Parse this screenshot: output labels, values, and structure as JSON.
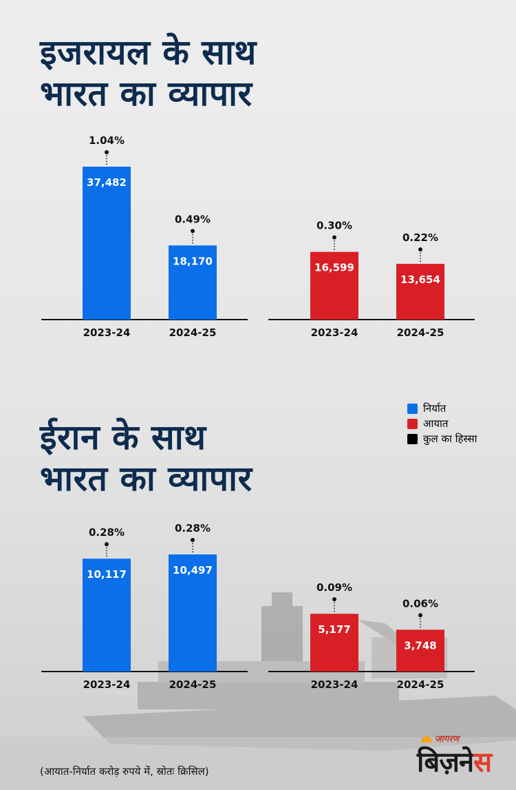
{
  "titles": [
    {
      "line1": "इजरायल के साथ",
      "line2": "भारत का व्यापार"
    },
    {
      "line1": "ईरान के साथ",
      "line2": "भारत का व्यापार"
    }
  ],
  "legend": [
    {
      "label": "निर्यात",
      "color": "#0a6fe8"
    },
    {
      "label": "आयात",
      "color": "#d81f26"
    },
    {
      "label": "कुल का हिस्सा",
      "color": "#000000"
    }
  ],
  "source": "(आयात-निर्यात करोड़ रुपये में, स्रोतः क्रिसिल)",
  "brand": {
    "small": "जागरण",
    "main_a": "बिज़ने",
    "main_b": "स"
  },
  "chart_data": [
    {
      "type": "bar",
      "group": "इजरायल",
      "series": "निर्यात",
      "color": "#0a6fe8",
      "categories": [
        "2023-24",
        "2024-25"
      ],
      "values": [
        37482,
        18170
      ],
      "value_labels": [
        "37,482",
        "18,170"
      ],
      "share_labels": [
        "1.04%",
        "0.49%"
      ],
      "ylim": [
        0,
        40000
      ]
    },
    {
      "type": "bar",
      "group": "इजरायल",
      "series": "आयात",
      "color": "#d81f26",
      "categories": [
        "2023-24",
        "2024-25"
      ],
      "values": [
        16599,
        13654
      ],
      "value_labels": [
        "16,599",
        "13,654"
      ],
      "share_labels": [
        "0.30%",
        "0.22%"
      ],
      "ylim": [
        0,
        40000
      ]
    },
    {
      "type": "bar",
      "group": "ईरान",
      "series": "निर्यात",
      "color": "#0a6fe8",
      "categories": [
        "2023-24",
        "2024-25"
      ],
      "values": [
        10117,
        10497
      ],
      "value_labels": [
        "10,117",
        "10,497"
      ],
      "share_labels": [
        "0.28%",
        "0.28%"
      ],
      "ylim": [
        0,
        12000
      ]
    },
    {
      "type": "bar",
      "group": "ईरान",
      "series": "आयात",
      "color": "#d81f26",
      "categories": [
        "2023-24",
        "2024-25"
      ],
      "values": [
        5177,
        3748
      ],
      "value_labels": [
        "5,177",
        "3,748"
      ],
      "share_labels": [
        "0.09%",
        "0.06%"
      ],
      "ylim": [
        0,
        12000
      ]
    }
  ]
}
